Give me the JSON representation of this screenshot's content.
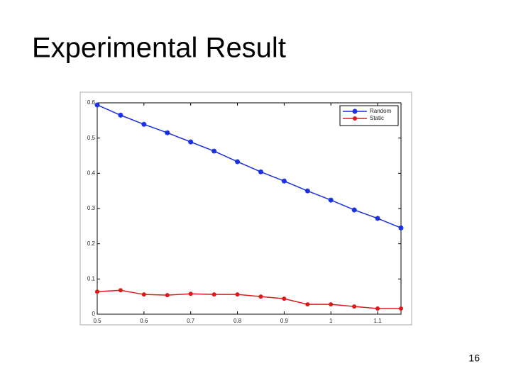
{
  "slide_title": "Experimental Result",
  "page_number": "16",
  "chart_data": {
    "type": "line",
    "x": [
      0.5,
      0.55,
      0.6,
      0.65,
      0.7,
      0.75,
      0.8,
      0.85,
      0.9,
      0.95,
      1,
      1.05,
      1.1,
      1.15
    ],
    "series": [
      {
        "name": "Random",
        "color": "#1a2fe0",
        "marker": "star",
        "values": [
          0.594,
          0.565,
          0.539,
          0.515,
          0.489,
          0.463,
          0.433,
          0.404,
          0.378,
          0.35,
          0.324,
          0.296,
          0.272,
          0.245
        ]
      },
      {
        "name": "Static",
        "color": "#e01818",
        "marker": "circle",
        "values": [
          0.064,
          0.068,
          0.056,
          0.054,
          0.058,
          0.056,
          0.056,
          0.05,
          0.044,
          0.028,
          0.028,
          0.022,
          0.016,
          0.016
        ]
      }
    ],
    "xlim": [
      0.5,
      1.15
    ],
    "ylim": [
      0,
      0.6
    ],
    "xticks": [
      0.5,
      0.6,
      0.7,
      0.8,
      0.9,
      1,
      1.1
    ],
    "yticks": [
      0,
      0.1,
      0.2,
      0.3,
      0.4,
      0.5,
      0.6
    ],
    "legend": "upper right",
    "grid": false
  }
}
